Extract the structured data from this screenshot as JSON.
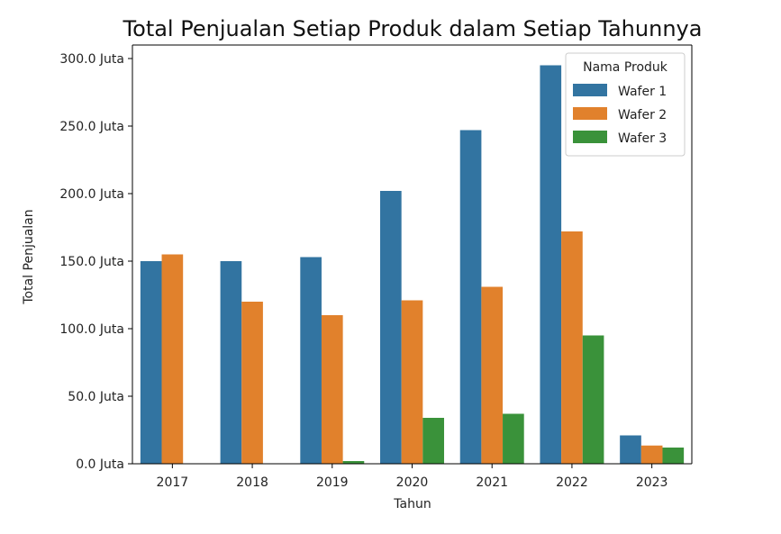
{
  "chart_data": {
    "type": "bar",
    "title": "Total Penjualan Setiap Produk dalam Setiap Tahunnya",
    "xlabel": "Tahun",
    "ylabel": "Total Penjualan",
    "categories": [
      "2017",
      "2018",
      "2019",
      "2020",
      "2021",
      "2022",
      "2023"
    ],
    "ylim": [
      0,
      310000000
    ],
    "yticks": [
      0,
      50000000,
      100000000,
      150000000,
      200000000,
      250000000,
      300000000
    ],
    "ytick_labels": [
      "0.0 Juta",
      "50.0 Juta",
      "100.0 Juta",
      "150.0 Juta",
      "200.0 Juta",
      "250.0 Juta",
      "300.0 Juta"
    ],
    "legend": {
      "title": "Nama Produk",
      "position": "top-right"
    },
    "grid": false,
    "series": [
      {
        "name": "Wafer 1",
        "color": "#3274a1",
        "values": [
          150000000,
          150000000,
          153000000,
          202000000,
          247000000,
          295000000,
          21000000
        ]
      },
      {
        "name": "Wafer 2",
        "color": "#e1812c",
        "values": [
          155000000,
          120000000,
          110000000,
          121000000,
          131000000,
          172000000,
          13500000
        ]
      },
      {
        "name": "Wafer 3",
        "color": "#3a923a",
        "values": [
          0,
          0,
          2000000,
          34000000,
          37000000,
          95000000,
          12000000
        ]
      }
    ]
  }
}
